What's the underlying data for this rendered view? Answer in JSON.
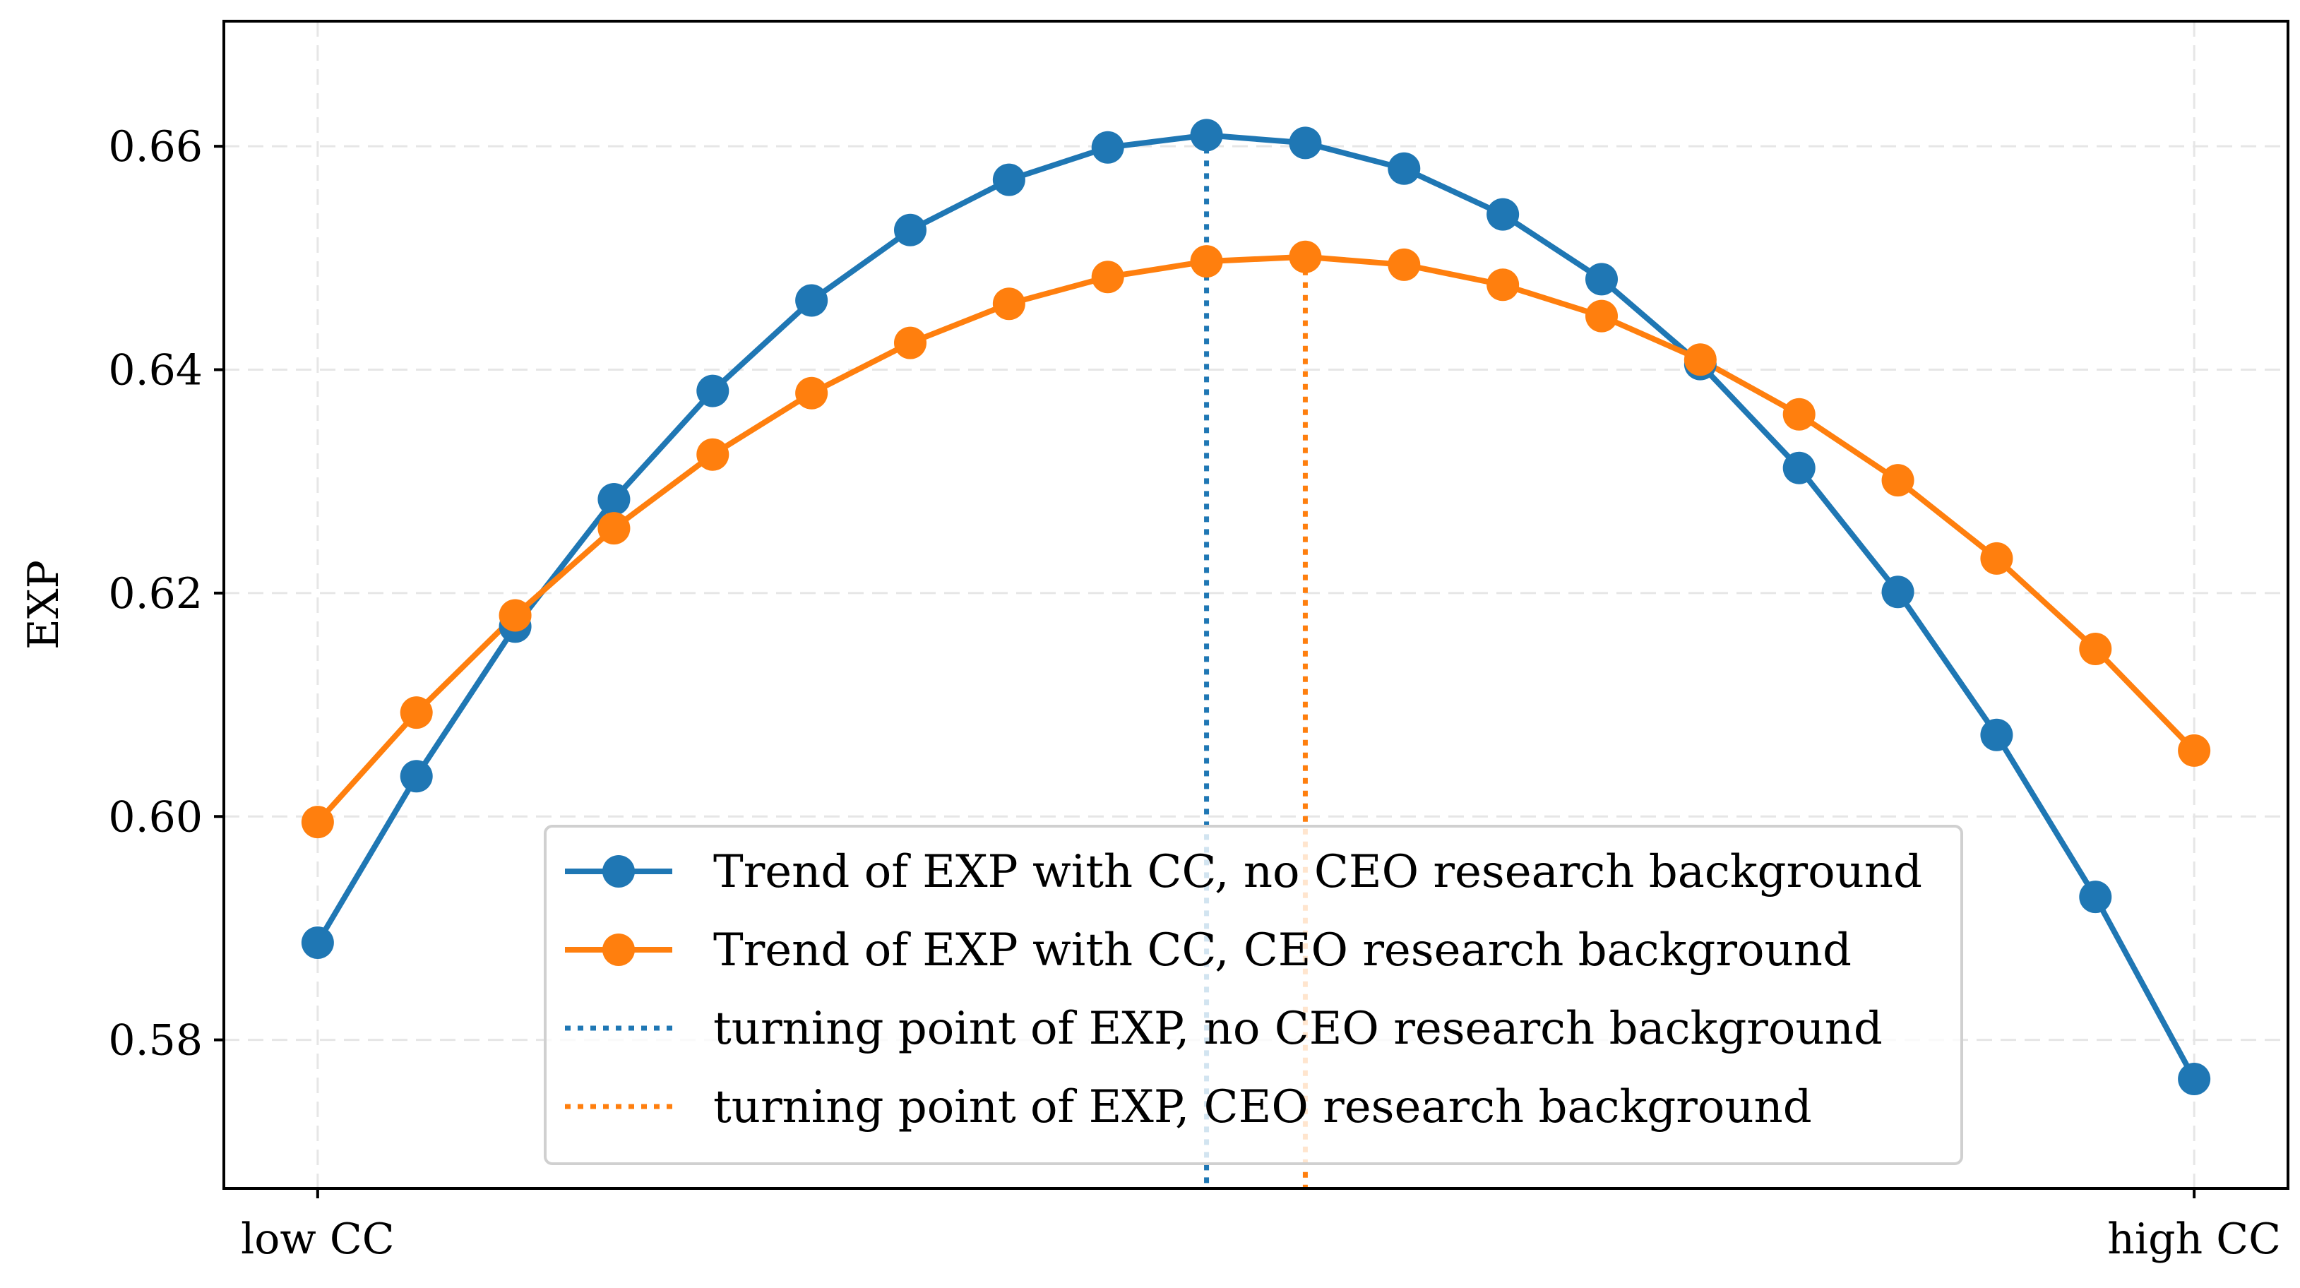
{
  "chart_data": {
    "type": "line",
    "title": "",
    "xlabel": "",
    "ylabel": "EXP",
    "x_tick_labels": [
      "low CC",
      "high CC"
    ],
    "x_index": [
      0,
      1,
      2,
      3,
      4,
      5,
      6,
      7,
      8,
      9,
      10,
      11,
      12,
      13,
      14,
      15,
      16,
      17,
      18,
      19
    ],
    "xlim": [
      -0.95,
      19.95
    ],
    "ylim": [
      0.5667,
      0.6712
    ],
    "yticks": [
      0.58,
      0.6,
      0.62,
      0.64,
      0.66
    ],
    "ytick_labels": [
      "0.58",
      "0.60",
      "0.62",
      "0.64",
      "0.66"
    ],
    "grid": true,
    "legend_position": "bottom-center",
    "series": [
      {
        "name": "Trend of EXP with CC, no CEO research background",
        "color": "#1f77b4",
        "style": "line-marker",
        "values": [
          0.5887,
          0.6036,
          0.617,
          0.6284,
          0.6381,
          0.6462,
          0.6525,
          0.657,
          0.6599,
          0.661,
          0.6603,
          0.658,
          0.6539,
          0.6481,
          0.6405,
          0.6312,
          0.6201,
          0.6073,
          0.5928,
          0.5765
        ]
      },
      {
        "name": "Trend of EXP with CC, CEO research background",
        "color": "#ff7f0e",
        "style": "line-marker",
        "values": [
          0.5995,
          0.6093,
          0.618,
          0.6258,
          0.6324,
          0.6379,
          0.6424,
          0.6459,
          0.6483,
          0.6497,
          0.6501,
          0.6494,
          0.6476,
          0.6448,
          0.6409,
          0.636,
          0.6301,
          0.6231,
          0.615,
          0.6059
        ]
      }
    ],
    "turning_points": [
      {
        "name": "turning point of EXP, no CEO research background",
        "color": "#1f77b4",
        "x": 9
      },
      {
        "name": "turning point of EXP, CEO research background",
        "color": "#ff7f0e",
        "x": 10
      }
    ]
  }
}
